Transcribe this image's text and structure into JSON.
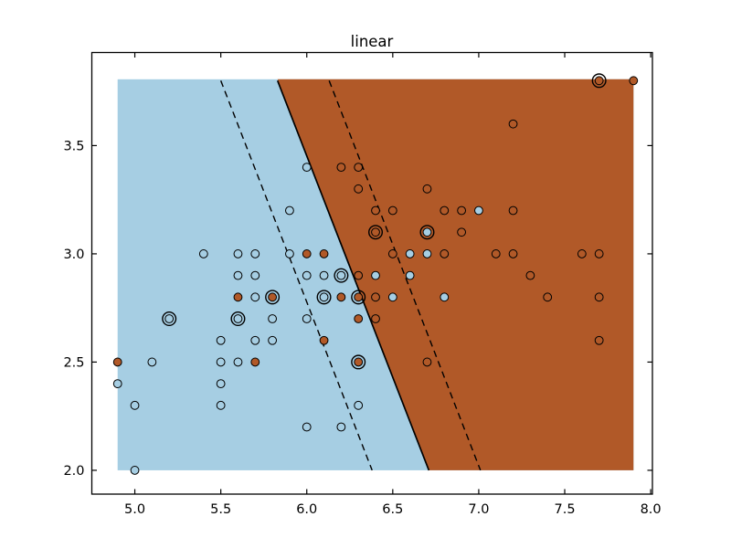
{
  "figure": {
    "title": "linear",
    "background": "#ffffff"
  },
  "chart_data": {
    "type": "scatter",
    "title": "linear",
    "xlabel": "",
    "ylabel": "",
    "grid": false,
    "legend": "none",
    "xlim": [
      4.75,
      8.01
    ],
    "ylim": [
      1.89,
      3.93
    ],
    "x_ticks": [
      5.0,
      5.5,
      6.0,
      6.5,
      7.0,
      7.5,
      8.0
    ],
    "x_tick_labels": [
      "5.0",
      "5.5",
      "6.0",
      "6.5",
      "7.0",
      "7.5",
      "8.0"
    ],
    "y_ticks": [
      2.0,
      2.5,
      3.0,
      3.5
    ],
    "y_tick_labels": [
      "2.0",
      "2.5",
      "3.0",
      "3.5"
    ],
    "regions": {
      "mesh_x": [
        4.9,
        7.9
      ],
      "mesh_y": [
        2.0,
        3.8
      ],
      "left_class_color": "#A6CEE3",
      "right_class_color": "#B15928"
    },
    "boundary_lines": {
      "solid_decision": {
        "x": [
          5.83,
          6.71
        ],
        "y": [
          3.8,
          2.0
        ]
      },
      "dashed_margins": [
        {
          "x": [
            5.5,
            6.38
          ],
          "y": [
            3.8,
            2.0
          ]
        },
        {
          "x": [
            6.13,
            7.01
          ],
          "y": [
            3.8,
            2.0
          ]
        }
      ]
    },
    "classes": [
      {
        "label": "class-0-light-blue",
        "color": "#A6CEE3"
      },
      {
        "label": "class-1-brown-orange",
        "color": "#B15928"
      }
    ],
    "marker": {
      "radius": 4.4,
      "edge_color": "#000000",
      "ring_radius": 7.3
    },
    "points": [
      {
        "x": 7.7,
        "y": 3.8,
        "c": 1,
        "ring": true
      },
      {
        "x": 7.9,
        "y": 3.8,
        "c": 1
      },
      {
        "x": 7.2,
        "y": 3.6,
        "c": 1
      },
      {
        "x": 6.0,
        "y": 3.4,
        "c": 0
      },
      {
        "x": 6.2,
        "y": 3.4,
        "c": 1
      },
      {
        "x": 6.3,
        "y": 3.4,
        "c": 1
      },
      {
        "x": 6.3,
        "y": 3.3,
        "c": 1
      },
      {
        "x": 6.7,
        "y": 3.3,
        "c": 1
      },
      {
        "x": 5.9,
        "y": 3.2,
        "c": 0
      },
      {
        "x": 6.4,
        "y": 3.2,
        "c": 1
      },
      {
        "x": 6.5,
        "y": 3.2,
        "c": 1
      },
      {
        "x": 6.8,
        "y": 3.2,
        "c": 1
      },
      {
        "x": 6.9,
        "y": 3.2,
        "c": 1
      },
      {
        "x": 7.0,
        "y": 3.2,
        "c": 0
      },
      {
        "x": 7.2,
        "y": 3.2,
        "c": 1
      },
      {
        "x": 6.4,
        "y": 3.1,
        "c": 1,
        "ring": true
      },
      {
        "x": 6.7,
        "y": 3.1,
        "c": 0,
        "ring": true
      },
      {
        "x": 6.9,
        "y": 3.1,
        "c": 1
      },
      {
        "x": 5.4,
        "y": 3.0,
        "c": 0
      },
      {
        "x": 5.6,
        "y": 3.0,
        "c": 0
      },
      {
        "x": 5.7,
        "y": 3.0,
        "c": 0
      },
      {
        "x": 5.9,
        "y": 3.0,
        "c": 0
      },
      {
        "x": 6.0,
        "y": 3.0,
        "c": 1
      },
      {
        "x": 6.1,
        "y": 3.0,
        "c": 1
      },
      {
        "x": 6.5,
        "y": 3.0,
        "c": 1
      },
      {
        "x": 6.6,
        "y": 3.0,
        "c": 0
      },
      {
        "x": 6.7,
        "y": 3.0,
        "c": 0
      },
      {
        "x": 6.8,
        "y": 3.0,
        "c": 1
      },
      {
        "x": 7.1,
        "y": 3.0,
        "c": 1
      },
      {
        "x": 7.2,
        "y": 3.0,
        "c": 1
      },
      {
        "x": 7.6,
        "y": 3.0,
        "c": 1
      },
      {
        "x": 7.7,
        "y": 3.0,
        "c": 1
      },
      {
        "x": 5.6,
        "y": 2.9,
        "c": 0
      },
      {
        "x": 5.7,
        "y": 2.9,
        "c": 0
      },
      {
        "x": 6.0,
        "y": 2.9,
        "c": 0
      },
      {
        "x": 6.1,
        "y": 2.9,
        "c": 0
      },
      {
        "x": 6.2,
        "y": 2.9,
        "c": 0,
        "ring": true
      },
      {
        "x": 6.3,
        "y": 2.9,
        "c": 1
      },
      {
        "x": 6.4,
        "y": 2.9,
        "c": 0
      },
      {
        "x": 6.6,
        "y": 2.9,
        "c": 0
      },
      {
        "x": 7.3,
        "y": 2.9,
        "c": 1
      },
      {
        "x": 5.6,
        "y": 2.8,
        "c": 1
      },
      {
        "x": 5.7,
        "y": 2.8,
        "c": 0
      },
      {
        "x": 5.8,
        "y": 2.8,
        "c": 1,
        "ring": true
      },
      {
        "x": 6.1,
        "y": 2.8,
        "c": 0,
        "ring": true
      },
      {
        "x": 6.2,
        "y": 2.8,
        "c": 1
      },
      {
        "x": 6.3,
        "y": 2.8,
        "c": 1,
        "ring": true
      },
      {
        "x": 6.4,
        "y": 2.8,
        "c": 1
      },
      {
        "x": 6.5,
        "y": 2.8,
        "c": 0
      },
      {
        "x": 6.8,
        "y": 2.8,
        "c": 0
      },
      {
        "x": 7.4,
        "y": 2.8,
        "c": 1
      },
      {
        "x": 7.7,
        "y": 2.8,
        "c": 1
      },
      {
        "x": 5.2,
        "y": 2.7,
        "c": 0,
        "ring": true
      },
      {
        "x": 5.6,
        "y": 2.7,
        "c": 0,
        "ring": true
      },
      {
        "x": 5.8,
        "y": 2.7,
        "c": 0
      },
      {
        "x": 6.0,
        "y": 2.7,
        "c": 0
      },
      {
        "x": 6.3,
        "y": 2.7,
        "c": 1
      },
      {
        "x": 6.4,
        "y": 2.7,
        "c": 1
      },
      {
        "x": 5.5,
        "y": 2.6,
        "c": 0
      },
      {
        "x": 5.7,
        "y": 2.6,
        "c": 0
      },
      {
        "x": 5.8,
        "y": 2.6,
        "c": 0
      },
      {
        "x": 6.1,
        "y": 2.6,
        "c": 1
      },
      {
        "x": 7.7,
        "y": 2.6,
        "c": 1
      },
      {
        "x": 4.9,
        "y": 2.5,
        "c": 1
      },
      {
        "x": 5.1,
        "y": 2.5,
        "c": 0
      },
      {
        "x": 5.5,
        "y": 2.5,
        "c": 0
      },
      {
        "x": 5.6,
        "y": 2.5,
        "c": 0
      },
      {
        "x": 5.7,
        "y": 2.5,
        "c": 1
      },
      {
        "x": 6.3,
        "y": 2.5,
        "c": 1,
        "ring": true
      },
      {
        "x": 6.7,
        "y": 2.5,
        "c": 1
      },
      {
        "x": 4.9,
        "y": 2.4,
        "c": 0
      },
      {
        "x": 5.5,
        "y": 2.4,
        "c": 0
      },
      {
        "x": 5.0,
        "y": 2.3,
        "c": 0
      },
      {
        "x": 5.5,
        "y": 2.3,
        "c": 0
      },
      {
        "x": 6.3,
        "y": 2.3,
        "c": 0
      },
      {
        "x": 6.0,
        "y": 2.2,
        "c": 0
      },
      {
        "x": 6.2,
        "y": 2.2,
        "c": 0
      },
      {
        "x": 5.0,
        "y": 2.0,
        "c": 0
      }
    ]
  }
}
